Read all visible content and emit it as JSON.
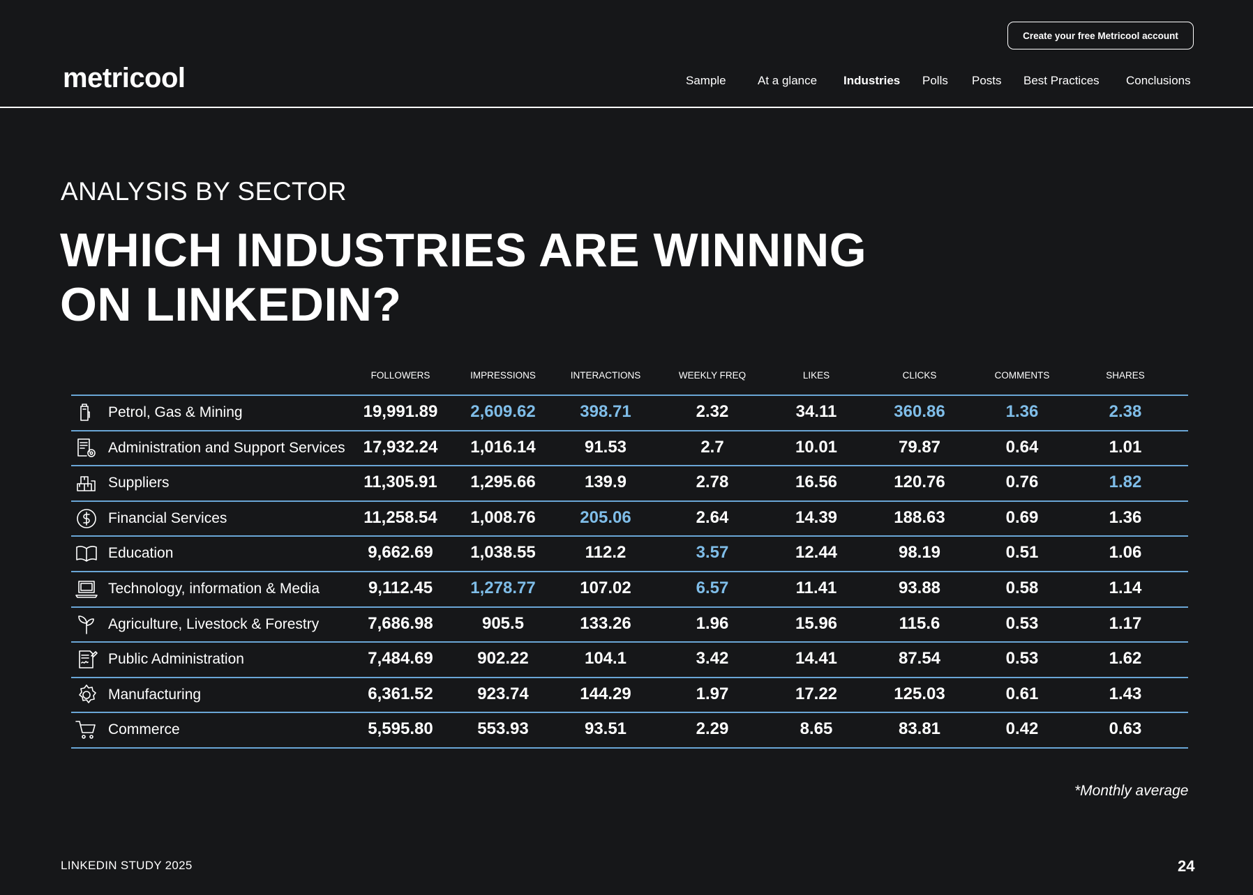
{
  "header": {
    "cta_label": "Create your free Metricool account",
    "logo_text": "metricool",
    "nav": [
      {
        "label": "Sample",
        "active": false
      },
      {
        "label": "At a glance",
        "active": false
      },
      {
        "label": "Industries",
        "active": true
      },
      {
        "label": "Polls",
        "active": false
      },
      {
        "label": "Posts",
        "active": false
      },
      {
        "label": "Best Practices",
        "active": false
      },
      {
        "label": "Conclusions",
        "active": false
      }
    ]
  },
  "section": {
    "eyebrow": "ANALYSIS BY SECTOR",
    "title_line1": "WHICH INDUSTRIES ARE WINNING",
    "title_line2": "ON LINKEDIN?"
  },
  "table": {
    "columns": [
      "FOLLOWERS",
      "IMPRESSIONS",
      "INTERACTIONS",
      "WEEKLY FREQ",
      "LIKES",
      "CLICKS",
      "COMMENTS",
      "SHARES"
    ],
    "highlight_color": "#7fbde8",
    "rows": [
      {
        "icon": "fuel-can-icon",
        "label": "Petrol, Gas & Mining",
        "values": [
          "19,991.89",
          "2,609.62",
          "398.71",
          "2.32",
          "34.11",
          "360.86",
          "1.36",
          "2.38"
        ],
        "highlight": [
          false,
          true,
          true,
          false,
          false,
          true,
          true,
          true
        ]
      },
      {
        "icon": "document-gear-icon",
        "label": "Administration and Support Services",
        "values": [
          "17,932.24",
          "1,016.14",
          "91.53",
          "2.7",
          "10.01",
          "79.87",
          "0.64",
          "1.01"
        ],
        "highlight": [
          false,
          false,
          false,
          false,
          false,
          false,
          false,
          false
        ]
      },
      {
        "icon": "boxes-icon",
        "label": "Suppliers",
        "values": [
          "11,305.91",
          "1,295.66",
          "139.9",
          "2.78",
          "16.56",
          "120.76",
          "0.76",
          "1.82"
        ],
        "highlight": [
          false,
          false,
          false,
          false,
          false,
          false,
          false,
          true
        ]
      },
      {
        "icon": "dollar-coin-icon",
        "label": "Financial Services",
        "values": [
          "11,258.54",
          "1,008.76",
          "205.06",
          "2.64",
          "14.39",
          "188.63",
          "0.69",
          "1.36"
        ],
        "highlight": [
          false,
          false,
          true,
          false,
          false,
          false,
          false,
          false
        ]
      },
      {
        "icon": "open-book-icon",
        "label": "Education",
        "values": [
          "9,662.69",
          "1,038.55",
          "112.2",
          "3.57",
          "12.44",
          "98.19",
          "0.51",
          "1.06"
        ],
        "highlight": [
          false,
          false,
          false,
          true,
          false,
          false,
          false,
          false
        ]
      },
      {
        "icon": "laptop-icon",
        "label": "Technology, information & Media",
        "values": [
          "9,112.45",
          "1,278.77",
          "107.02",
          "6.57",
          "11.41",
          "93.88",
          "0.58",
          "1.14"
        ],
        "highlight": [
          false,
          true,
          false,
          true,
          false,
          false,
          false,
          false
        ]
      },
      {
        "icon": "sprout-icon",
        "label": "Agriculture, Livestock & Forestry",
        "values": [
          "7,686.98",
          "905.5",
          "133.26",
          "1.96",
          "15.96",
          "115.6",
          "0.53",
          "1.17"
        ],
        "highlight": [
          false,
          false,
          false,
          false,
          false,
          false,
          false,
          false
        ]
      },
      {
        "icon": "document-signature-icon",
        "label": "Public Administration",
        "values": [
          "7,484.69",
          "902.22",
          "104.1",
          "3.42",
          "14.41",
          "87.54",
          "0.53",
          "1.62"
        ],
        "highlight": [
          false,
          false,
          false,
          false,
          false,
          false,
          false,
          false
        ]
      },
      {
        "icon": "gear-icon",
        "label": "Manufacturing",
        "values": [
          "6,361.52",
          "923.74",
          "144.29",
          "1.97",
          "17.22",
          "125.03",
          "0.61",
          "1.43"
        ],
        "highlight": [
          false,
          false,
          false,
          false,
          false,
          false,
          false,
          false
        ]
      },
      {
        "icon": "shopping-cart-icon",
        "label": "Commerce",
        "values": [
          "5,595.80",
          "553.93",
          "93.51",
          "2.29",
          "8.65",
          "83.81",
          "0.42",
          "0.63"
        ],
        "highlight": [
          false,
          false,
          false,
          false,
          false,
          false,
          false,
          false
        ]
      }
    ]
  },
  "footnote": "*Monthly average",
  "footer": {
    "left": "LINKEDIN STUDY 2025",
    "page_number": "24"
  }
}
